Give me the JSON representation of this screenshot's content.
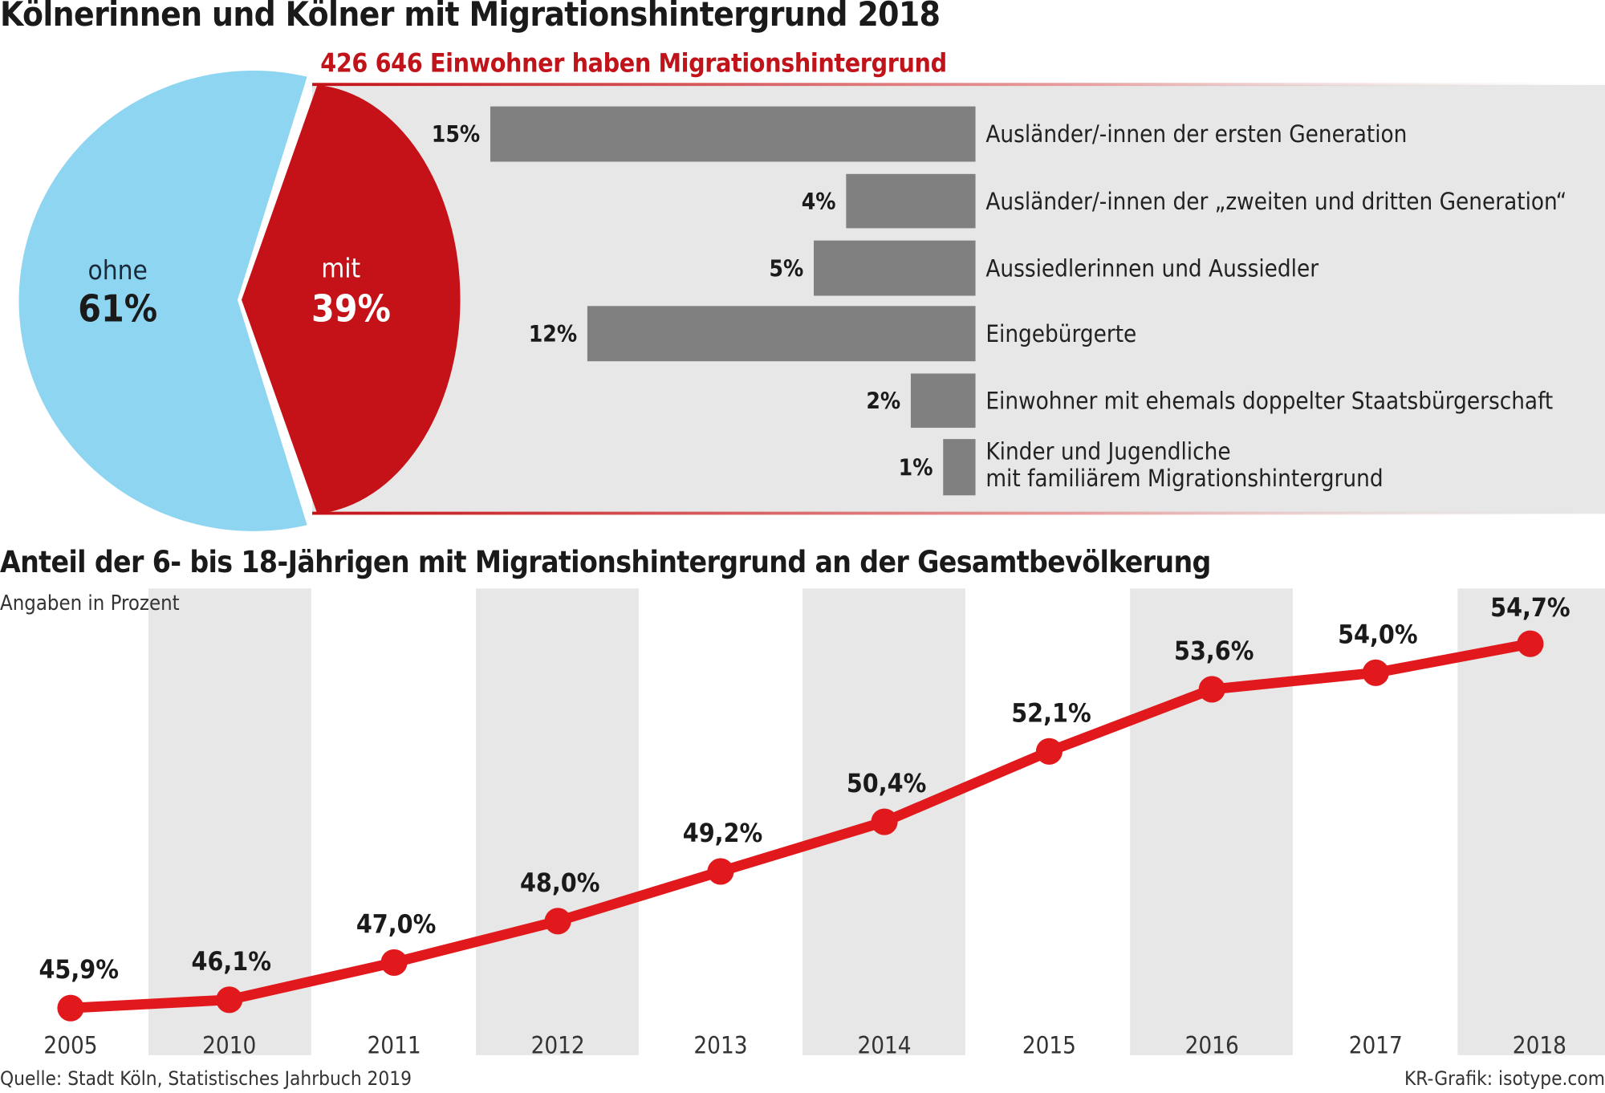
{
  "title": "Kölnerinnen und Kölner mit Migrationshintergrund 2018",
  "colors": {
    "blue": "#8dd5f1",
    "red": "#c41218",
    "line": "#e2191c",
    "bar": "#808080",
    "panel": "#e6e7e6"
  },
  "chart_data": [
    {
      "type": "pie",
      "slices": [
        {
          "label": "ohne",
          "value_label": "61%",
          "value": 61
        },
        {
          "label": "mit",
          "value_label": "39%",
          "value": 39
        }
      ]
    },
    {
      "type": "bar",
      "orientation": "horizontal",
      "title": "426 646 Einwohner haben Migrationshintergrund",
      "categories": [
        "Ausländer/-innen der ersten Generation",
        "Ausländer/-innen der „zweiten und dritten Generation“",
        "Aussiedlerinnen und Aussiedler",
        "Eingebürgerte",
        "Einwohner mit ehemals doppelter Staatsbürgerschaft",
        [
          "Kinder und Jugendliche",
          "mit familiärem Migrationshintergrund"
        ]
      ],
      "values": [
        15,
        4,
        5,
        12,
        2,
        1
      ],
      "value_labels": [
        "15%",
        "4%",
        "5%",
        "12%",
        "2%",
        "1%"
      ]
    },
    {
      "type": "line",
      "title": "Anteil der 6- bis 18-Jährigen mit Migrationshintergrund an der Gesamtbevölkerung",
      "subtitle": "Angaben in Prozent",
      "x": [
        "2005",
        "2010",
        "2011",
        "2012",
        "2013",
        "2014",
        "2015",
        "2016",
        "2017",
        "2018"
      ],
      "values": [
        45.9,
        46.1,
        47.0,
        48.0,
        49.2,
        50.4,
        52.1,
        53.6,
        54.0,
        54.7
      ],
      "value_labels": [
        "45,9%",
        "46,1%",
        "47,0%",
        "48,0%",
        "49,2%",
        "50,4%",
        "52,1%",
        "53,6%",
        "54,0%",
        "54,7%"
      ],
      "grid": false,
      "alternating_bands": true
    }
  ],
  "footer": {
    "source": "Quelle: Stadt Köln, Statistisches Jahrbuch 2019",
    "credit": "KR-Grafik: isotype.com"
  }
}
